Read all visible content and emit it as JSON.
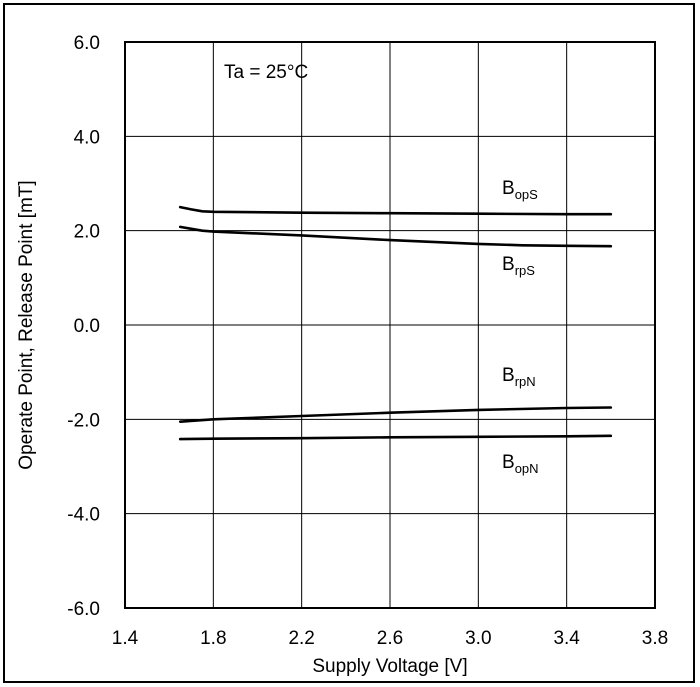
{
  "chart_data": {
    "type": "line",
    "xlabel": "Supply Voltage [V]",
    "ylabel": "Operate Point, Release Point [mT]",
    "xlim": [
      1.4,
      3.8
    ],
    "ylim": [
      -6.0,
      6.0
    ],
    "xticks": [
      "1.4",
      "1.8",
      "2.2",
      "2.6",
      "3.0",
      "3.4",
      "3.8"
    ],
    "yticks": [
      "6.0",
      "4.0",
      "2.0",
      "0.0",
      "-2.0",
      "-4.0",
      "-6.0"
    ],
    "grid": true,
    "annotation": "Ta = 25°C",
    "series": [
      {
        "name": "BopS",
        "label_main": "B",
        "label_sub": "opS",
        "x": [
          1.65,
          1.7,
          1.75,
          1.8,
          2.2,
          2.6,
          3.0,
          3.4,
          3.6
        ],
        "y": [
          2.5,
          2.45,
          2.41,
          2.4,
          2.38,
          2.37,
          2.36,
          2.35,
          2.35
        ]
      },
      {
        "name": "BrpS",
        "label_main": "B",
        "label_sub": "rpS",
        "x": [
          1.65,
          1.7,
          1.75,
          1.8,
          2.2,
          2.6,
          3.0,
          3.2,
          3.4,
          3.6
        ],
        "y": [
          2.08,
          2.04,
          2.0,
          1.98,
          1.9,
          1.8,
          1.72,
          1.69,
          1.68,
          1.67
        ]
      },
      {
        "name": "BrpN",
        "label_main": "B",
        "label_sub": "rpN",
        "x": [
          1.65,
          1.8,
          2.2,
          2.6,
          3.0,
          3.4,
          3.6
        ],
        "y": [
          -2.05,
          -2.0,
          -1.93,
          -1.86,
          -1.8,
          -1.76,
          -1.75
        ]
      },
      {
        "name": "BopN",
        "label_main": "B",
        "label_sub": "opN",
        "x": [
          1.65,
          1.8,
          2.2,
          2.6,
          3.0,
          3.4,
          3.6
        ],
        "y": [
          -2.42,
          -2.41,
          -2.4,
          -2.38,
          -2.37,
          -2.36,
          -2.35
        ]
      }
    ]
  }
}
